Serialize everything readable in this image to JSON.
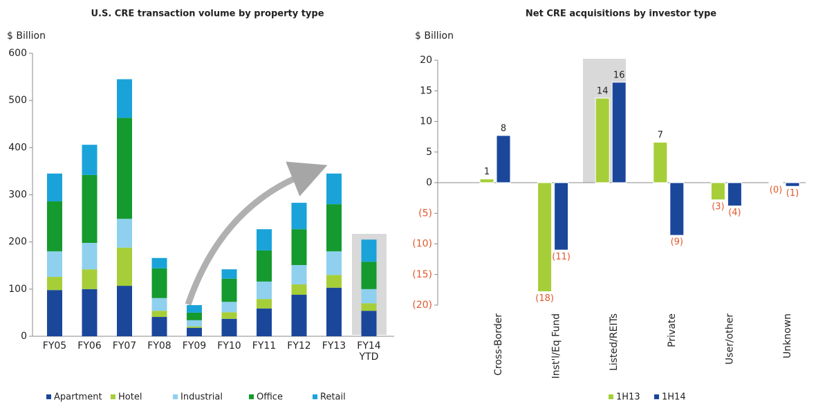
{
  "chart_data": [
    {
      "type": "stacked_bar",
      "title": "U.S. CRE transaction volume by property type",
      "y_label": "$ Billion",
      "categories": [
        "FY05",
        "FY06",
        "FY07",
        "FY08",
        "FY09",
        "FY10",
        "FY11",
        "FY12",
        "FY13",
        "FY14 YTD"
      ],
      "series": [
        {
          "name": "Apartment",
          "color": "#1b479b",
          "values": [
            98,
            100,
            107,
            41,
            18,
            37,
            59,
            88,
            103,
            54
          ]
        },
        {
          "name": "Hotel",
          "color": "#a6ce39",
          "values": [
            28,
            42,
            81,
            13,
            3,
            14,
            20,
            22,
            27,
            16
          ]
        },
        {
          "name": "Industrial",
          "color": "#8fd0ee",
          "values": [
            54,
            56,
            61,
            27,
            13,
            22,
            37,
            41,
            50,
            30
          ]
        },
        {
          "name": "Office",
          "color": "#149a2e",
          "values": [
            106,
            144,
            214,
            63,
            16,
            49,
            66,
            76,
            100,
            58
          ]
        },
        {
          "name": "Retail",
          "color": "#1aa3d9",
          "values": [
            59,
            64,
            82,
            22,
            16,
            20,
            45,
            56,
            65,
            47
          ]
        }
      ],
      "ylim": [
        0,
        600
      ],
      "yticks": [
        0,
        100,
        200,
        300,
        400,
        500,
        600
      ],
      "grid": false,
      "legend": "bottom"
    },
    {
      "type": "bar",
      "title": "Net CRE acquisitions by investor type",
      "y_label": "$ Billion",
      "categories": [
        "Cross-Border",
        "Inst'l/Eq Fund",
        "Listed/REITs",
        "Private",
        "User/other",
        "Unknown"
      ],
      "series": [
        {
          "name": "1H13",
          "color": "#a6ce39",
          "values": [
            0.6,
            -17.8,
            13.8,
            6.6,
            -2.8,
            -0.1
          ],
          "value_labels": [
            "1",
            "(18)",
            "14",
            "7",
            "(3)",
            "(0)"
          ]
        },
        {
          "name": "1H14",
          "color": "#1b479b",
          "values": [
            7.7,
            -11,
            16.4,
            -8.6,
            -3.8,
            -0.6
          ],
          "value_labels": [
            "8",
            "(11)",
            "16",
            "(9)",
            "(4)",
            "(1)"
          ]
        }
      ],
      "ylim": [
        -20,
        20
      ],
      "yticks": [
        {
          "value": -20,
          "label": "(20)"
        },
        {
          "value": -15,
          "label": "(15)"
        },
        {
          "value": -10,
          "label": "(10)"
        },
        {
          "value": -5,
          "label": "(5)"
        },
        0,
        5,
        10,
        15,
        20
      ],
      "negative_color": "#e2572a",
      "grid": false,
      "legend": "bottom"
    }
  ]
}
